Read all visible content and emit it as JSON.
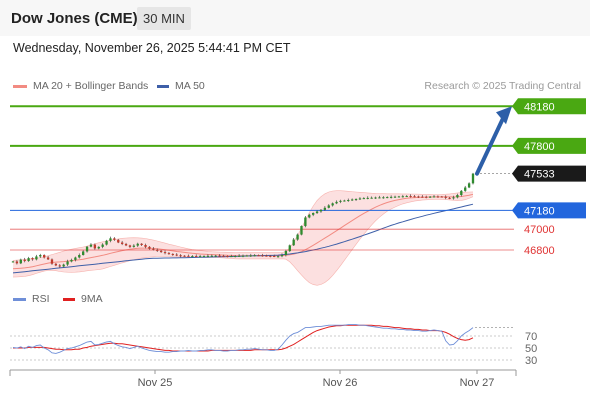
{
  "header": {
    "title": "Dow Jones (CME)",
    "interval": "30 MIN",
    "datetime": "Wednesday, November 26, 2025 5:44:41 PM CET"
  },
  "legend": {
    "ma20_label": "MA 20 + Bollinger Bands",
    "ma50_label": "MA 50",
    "rsi_label": "RSI",
    "ma9_label": "9MA",
    "credit": "Research © 2025 Trading Central"
  },
  "colors": {
    "ma20": "#f28b82",
    "ma50": "#3e5fa8",
    "bands": "#fbd5d5",
    "rsi": "#6f8fd8",
    "ma9": "#e02020",
    "target": "#4aa812",
    "pivot": "#2266dd",
    "support": "#e03333",
    "arrow": "#2d5fa8"
  },
  "chart_data": [
    {
      "type": "line",
      "subtype": "candlestick",
      "x_ticks": [
        "Nov 25",
        "Nov 26",
        "Nov 27"
      ],
      "ylim": [
        46560,
        48240
      ],
      "series": [
        {
          "name": "MA 20 + Bollinger Bands"
        },
        {
          "name": "MA 50"
        }
      ],
      "close": [
        46690,
        46672,
        46708,
        46694,
        46722,
        46710,
        46738,
        46752,
        46728,
        46710,
        46668,
        46652,
        46642,
        46660,
        46690,
        46705,
        46728,
        46752,
        46786,
        46832,
        46852,
        46815,
        46830,
        46852,
        46888,
        46912,
        46898,
        46872,
        46858,
        46844,
        46830,
        46842,
        46860,
        46848,
        46830,
        46812,
        46802,
        46792,
        46780,
        46770,
        46762,
        46756,
        46750,
        46745,
        46744,
        46742,
        46742,
        46740,
        46741,
        46742,
        46744,
        46745,
        46746,
        46744,
        46742,
        46740,
        46741,
        46742,
        46744,
        46745,
        46747,
        46748,
        46750,
        46749,
        46746,
        46744,
        46742,
        46740,
        46740,
        46752,
        46790,
        46845,
        46900,
        46948,
        47030,
        47112,
        47138,
        47155,
        47170,
        47185,
        47205,
        47228,
        47248,
        47262,
        47272,
        47275,
        47280,
        47285,
        47290,
        47295,
        47298,
        47300,
        47302,
        47304,
        47305,
        47306,
        47308,
        47310,
        47312,
        47314,
        47316,
        47318,
        47316,
        47314,
        47312,
        47311,
        47310,
        47312,
        47314,
        47313,
        47312,
        47300,
        47297,
        47305,
        47328,
        47368,
        47400,
        47440,
        47533
      ],
      "ma20": [
        46620,
        46622,
        46625,
        46628,
        46633,
        46640,
        46648,
        46657,
        46666,
        46674,
        46680,
        46684,
        46686,
        46689,
        46693,
        46697,
        46701,
        46706,
        46712,
        46719,
        46727,
        46734,
        46741,
        46749,
        46758,
        46768,
        46777,
        46786,
        46794,
        46801,
        46807,
        46812,
        46816,
        46818,
        46818,
        46817,
        46815,
        46812,
        46808,
        46803,
        46797,
        46791,
        46786,
        46782,
        46777,
        46772,
        46768,
        46765,
        46762,
        46760,
        46758,
        46757,
        46755,
        46753,
        46751,
        46749,
        46748,
        46746,
        46745,
        46745,
        46745,
        46745,
        46745,
        46745,
        46745,
        46745,
        46745,
        46745,
        46745,
        46746,
        46749,
        46754,
        46761,
        46771,
        46785,
        46803,
        46823,
        46845,
        46868,
        46891,
        46914,
        46937,
        46961,
        46985,
        47009,
        47034,
        47058,
        47082,
        47106,
        47129,
        47151,
        47172,
        47192,
        47211,
        47228,
        47243,
        47256,
        47267,
        47276,
        47284,
        47291,
        47296,
        47300,
        47303,
        47305,
        47307,
        47308,
        47309,
        47310,
        47310,
        47310,
        47310,
        47310,
        47310,
        47311,
        47314,
        47319,
        47326,
        47335
      ],
      "band_upper": [
        46700,
        46703,
        46706,
        46709,
        46713,
        46717,
        46721,
        46727,
        46735,
        46745,
        46756,
        46767,
        46778,
        46789,
        46799,
        46808,
        46815,
        46822,
        46829,
        46838,
        46849,
        46860,
        46870,
        46879,
        46886,
        46894,
        46901,
        46907,
        46912,
        46915,
        46917,
        46918,
        46917,
        46914,
        46910,
        46903,
        46895,
        46886,
        46876,
        46866,
        46856,
        46847,
        46838,
        46829,
        46820,
        46812,
        46805,
        46799,
        46794,
        46790,
        46787,
        46784,
        46782,
        46780,
        46779,
        46778,
        46777,
        46776,
        46775,
        46775,
        46775,
        46775,
        46775,
        46775,
        46775,
        46775,
        46775,
        46775,
        46775,
        46776,
        46786,
        46822,
        46877,
        46941,
        47011,
        47086,
        47159,
        47222,
        47275,
        47313,
        47340,
        47357,
        47366,
        47369,
        47369,
        47367,
        47364,
        47360,
        47357,
        47354,
        47351,
        47348,
        47345,
        47343,
        47342,
        47341,
        47340,
        47340,
        47340,
        47340,
        47339,
        47339,
        47338,
        47337,
        47336,
        47335,
        47334,
        47334,
        47333,
        47333,
        47334,
        47336,
        47339,
        47343,
        47348,
        47352,
        47355,
        47357,
        47358
      ],
      "band_lower": [
        46540,
        46541,
        46544,
        46547,
        46553,
        46563,
        46575,
        46587,
        46597,
        46603,
        46604,
        46601,
        46594,
        46589,
        46587,
        46586,
        46587,
        46590,
        46595,
        46600,
        46605,
        46608,
        46612,
        46619,
        46630,
        46642,
        46653,
        46665,
        46676,
        46687,
        46697,
        46706,
        46715,
        46722,
        46726,
        46731,
        46735,
        46738,
        46740,
        46740,
        46738,
        46735,
        46734,
        46735,
        46734,
        46732,
        46731,
        46731,
        46730,
        46730,
        46729,
        46730,
        46728,
        46726,
        46723,
        46720,
        46719,
        46716,
        46715,
        46715,
        46715,
        46715,
        46715,
        46715,
        46715,
        46715,
        46715,
        46715,
        46715,
        46716,
        46712,
        46686,
        46645,
        46601,
        46559,
        46520,
        46487,
        46468,
        46461,
        46469,
        46488,
        46517,
        46556,
        46601,
        46649,
        46701,
        46752,
        46804,
        46855,
        46904,
        46951,
        46996,
        47039,
        47079,
        47114,
        47145,
        47172,
        47194,
        47212,
        47228,
        47243,
        47253,
        47262,
        47269,
        47274,
        47279,
        47282,
        47284,
        47287,
        47287,
        47286,
        47284,
        47281,
        47277,
        47274,
        47276,
        47283,
        47295,
        47312
      ],
      "ma50": [
        46580,
        46584,
        46588,
        46592,
        46596,
        46600,
        46604,
        46608,
        46612,
        46616,
        46620,
        46624,
        46628,
        46632,
        46636,
        46640,
        46644,
        46648,
        46652,
        46656,
        46660,
        46664,
        46668,
        46672,
        46676,
        46680,
        46684,
        46688,
        46692,
        46696,
        46700,
        46704,
        46708,
        46712,
        46716,
        46718,
        46720,
        46721,
        46722,
        46723,
        46723,
        46724,
        46724,
        46725,
        46726,
        46727,
        46728,
        46729,
        46730,
        46731,
        46732,
        46733,
        46734,
        46735,
        46736,
        46737,
        46738,
        46739,
        46740,
        46741,
        46742,
        46743,
        46744,
        46745,
        46746,
        46747,
        46748,
        46749,
        46751,
        46754,
        46758,
        46762,
        46767,
        46772,
        46778,
        46785,
        46792,
        46800,
        46808,
        46817,
        46826,
        46836,
        46846,
        46857,
        46868,
        46880,
        46892,
        46904,
        46916,
        46929,
        46942,
        46955,
        46968,
        46981,
        46995,
        47009,
        47023,
        47036,
        47048,
        47060,
        47071,
        47082,
        47093,
        47104,
        47114,
        47124,
        47134,
        47143,
        47152,
        47161,
        47170,
        47178,
        47187,
        47195,
        47204,
        47213,
        47222,
        47231,
        47240
      ],
      "annotations": [
        {
          "label": "48180",
          "value": 48180,
          "kind": "target"
        },
        {
          "label": "47800",
          "value": 47800,
          "kind": "target"
        },
        {
          "label": "47533",
          "value": 47533,
          "kind": "last"
        },
        {
          "label": "47180",
          "value": 47180,
          "kind": "pivot"
        },
        {
          "label": "47000",
          "value": 47000,
          "kind": "support"
        },
        {
          "label": "46800",
          "value": 46800,
          "kind": "support"
        }
      ]
    },
    {
      "type": "line",
      "y_ticks": [
        70,
        50,
        30
      ],
      "ylim": [
        20,
        100
      ],
      "series": [
        {
          "name": "RSI",
          "values": [
            51,
            50,
            52,
            49,
            53,
            51,
            54,
            55,
            50,
            47,
            42,
            41,
            43,
            46,
            49,
            50,
            52,
            54,
            57,
            60,
            61,
            55,
            56,
            58,
            60,
            61,
            57,
            54,
            52,
            51,
            49,
            51,
            53,
            50,
            48,
            46,
            45,
            44,
            44,
            43,
            43,
            44,
            44,
            45,
            45,
            46,
            45,
            45,
            46,
            46,
            47,
            47,
            46,
            46,
            45,
            45,
            46,
            46,
            47,
            47,
            48,
            48,
            49,
            48,
            47,
            47,
            46,
            46,
            48,
            55,
            63,
            70,
            74,
            76,
            80,
            84,
            84,
            85,
            86,
            86,
            87,
            88,
            88,
            88,
            88,
            88,
            89,
            89,
            89,
            88,
            88,
            87,
            86,
            85,
            84,
            83,
            83,
            82,
            82,
            81,
            81,
            80,
            80,
            79,
            79,
            78,
            78,
            79,
            80,
            79,
            78,
            62,
            55,
            56,
            62,
            70,
            75,
            79,
            84
          ]
        },
        {
          "name": "9MA",
          "values": [
            50,
            50,
            50,
            50,
            51,
            51,
            51,
            51,
            51,
            50,
            49,
            48,
            48,
            47,
            47,
            47,
            48,
            48,
            50,
            51,
            53,
            54,
            55,
            56,
            57,
            58,
            58,
            57,
            57,
            56,
            55,
            54,
            53,
            52,
            51,
            50,
            49,
            48,
            47,
            46,
            46,
            45,
            45,
            45,
            45,
            45,
            45,
            45,
            45,
            45,
            45,
            46,
            46,
            46,
            46,
            46,
            46,
            46,
            46,
            46,
            46,
            46,
            47,
            47,
            47,
            47,
            47,
            47,
            47,
            48,
            50,
            53,
            56,
            60,
            64,
            68,
            72,
            76,
            79,
            81,
            83,
            85,
            86,
            87,
            87,
            88,
            88,
            88,
            88,
            88,
            88,
            88,
            88,
            87,
            87,
            86,
            86,
            85,
            84,
            84,
            83,
            82,
            82,
            81,
            81,
            80,
            80,
            79,
            79,
            79,
            78,
            76,
            73,
            69,
            66,
            64,
            63,
            64,
            67
          ]
        }
      ]
    }
  ]
}
